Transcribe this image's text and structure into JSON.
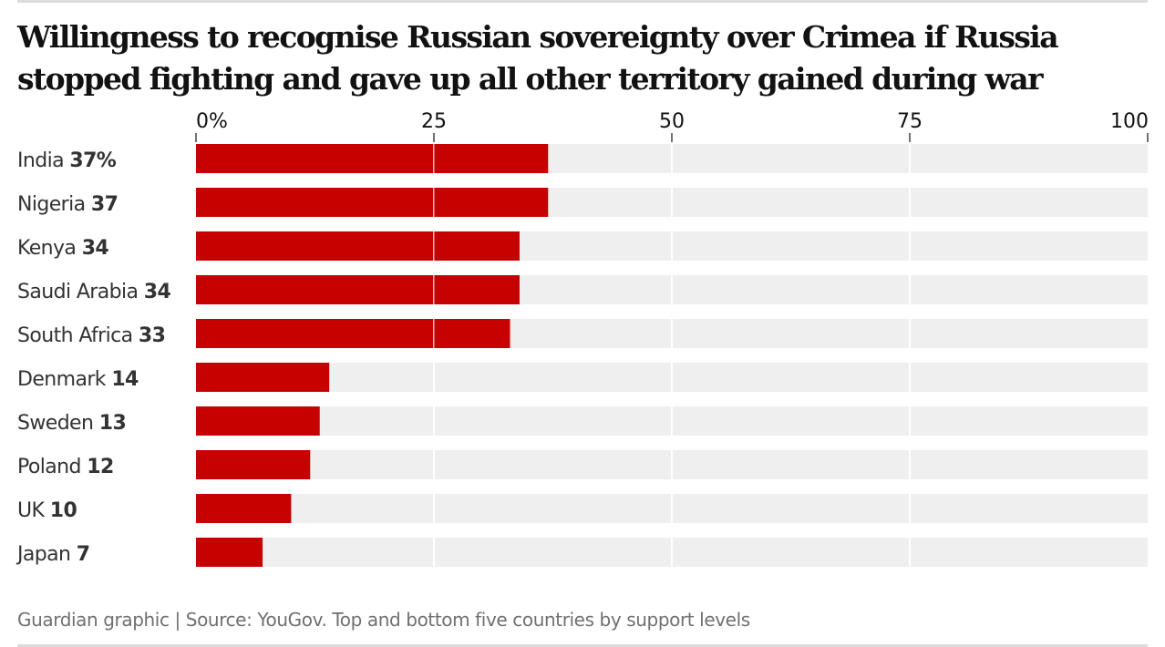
{
  "chart_data": {
    "type": "bar",
    "orientation": "horizontal",
    "title": "Willingness to recognise Russian sovereignty over Crimea if Russia stopped fighting and gave up all other territory gained during war",
    "xlabel": "",
    "ylabel": "",
    "xlim": [
      0,
      100
    ],
    "x_ticks": [
      0,
      25,
      50,
      75,
      100
    ],
    "x_tick_labels": [
      "0%",
      "25",
      "50",
      "75",
      "100"
    ],
    "grid": true,
    "categories": [
      "India",
      "Nigeria",
      "Kenya",
      "Saudi Arabia",
      "South Africa",
      "Denmark",
      "Sweden",
      "Poland",
      "UK",
      "Japan"
    ],
    "values": [
      37,
      37,
      34,
      34,
      33,
      14,
      13,
      12,
      10,
      7
    ],
    "value_labels": [
      "37%",
      "37",
      "34",
      "34",
      "33",
      "14",
      "13",
      "12",
      "10",
      "7"
    ],
    "colors": {
      "bar": "#c70000",
      "track": "#efefef",
      "gridline_on_bar": "#f5b5b5"
    },
    "footer": "Guardian graphic | Source: YouGov. Top and bottom five countries by support levels"
  }
}
